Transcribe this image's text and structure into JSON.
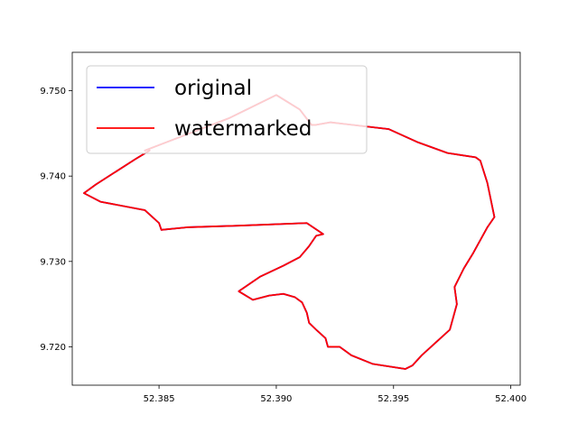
{
  "chart_data": {
    "type": "line",
    "title": "",
    "xlabel": "",
    "ylabel": "",
    "xlim": [
      52.3813,
      52.4004
    ],
    "ylim": [
      9.7155,
      9.7545
    ],
    "xticks": [
      52.385,
      52.39,
      52.395,
      52.4
    ],
    "xtick_labels": [
      "52.385",
      "52.390",
      "52.395",
      "52.400"
    ],
    "yticks": [
      9.72,
      9.73,
      9.74,
      9.75
    ],
    "ytick_labels": [
      "9.720",
      "9.730",
      "9.740",
      "9.750"
    ],
    "grid": false,
    "legend_position": "upper-left",
    "series": [
      {
        "name": "original",
        "color": "#0000ff",
        "x": [
          52.3844,
          52.388,
          52.39,
          52.391,
          52.3915,
          52.3917,
          52.3923,
          52.3948,
          52.396,
          52.3973,
          52.3985,
          52.3987,
          52.399,
          52.3993,
          52.399,
          52.3984,
          52.398,
          52.3976,
          52.3977,
          52.3974,
          52.3968,
          52.3962,
          52.3958,
          52.3955,
          52.3941,
          52.3932,
          52.3927,
          52.3922,
          52.3921,
          52.3917,
          52.3914,
          52.3913,
          52.3911,
          52.3908,
          52.3903,
          52.3897,
          52.389,
          52.3884,
          52.3893,
          52.3903,
          52.391,
          52.3914,
          52.3917,
          52.392,
          52.3913,
          52.3885,
          52.3862,
          52.3851,
          52.385,
          52.3844,
          52.3825,
          52.3818,
          52.3823,
          52.384,
          52.3846
        ],
        "y": [
          9.743,
          9.7468,
          9.7495,
          9.7478,
          9.746,
          9.746,
          9.7463,
          9.7455,
          9.744,
          9.7427,
          9.7422,
          9.7418,
          9.7392,
          9.7352,
          9.734,
          9.731,
          9.7292,
          9.727,
          9.725,
          9.722,
          9.7205,
          9.719,
          9.7178,
          9.7174,
          9.718,
          9.719,
          9.72,
          9.72,
          9.721,
          9.722,
          9.7228,
          9.724,
          9.7252,
          9.7258,
          9.7262,
          9.726,
          9.7255,
          9.7265,
          9.7282,
          9.7295,
          9.7305,
          9.7318,
          9.733,
          9.7332,
          9.7345,
          9.7342,
          9.734,
          9.7337,
          9.7345,
          9.736,
          9.737,
          9.738,
          9.739,
          9.742,
          9.743
        ]
      },
      {
        "name": "watermarked",
        "color": "#ff0000",
        "x": [
          52.3844,
          52.388,
          52.39,
          52.391,
          52.3915,
          52.3917,
          52.3923,
          52.3948,
          52.396,
          52.3973,
          52.3985,
          52.3987,
          52.399,
          52.3993,
          52.399,
          52.3984,
          52.398,
          52.3976,
          52.3977,
          52.3974,
          52.3968,
          52.3962,
          52.3958,
          52.3955,
          52.3941,
          52.3932,
          52.3927,
          52.3922,
          52.3921,
          52.3917,
          52.3914,
          52.3913,
          52.3911,
          52.3908,
          52.3903,
          52.3897,
          52.389,
          52.3884,
          52.3893,
          52.3903,
          52.391,
          52.3914,
          52.3917,
          52.392,
          52.3913,
          52.3885,
          52.3862,
          52.3851,
          52.385,
          52.3844,
          52.3825,
          52.3818,
          52.3823,
          52.384,
          52.3846
        ],
        "y": [
          9.743,
          9.7468,
          9.7495,
          9.7478,
          9.746,
          9.746,
          9.7463,
          9.7455,
          9.744,
          9.7427,
          9.7422,
          9.7418,
          9.7392,
          9.7352,
          9.734,
          9.731,
          9.7292,
          9.727,
          9.725,
          9.722,
          9.7205,
          9.719,
          9.7178,
          9.7174,
          9.718,
          9.719,
          9.72,
          9.72,
          9.721,
          9.722,
          9.7228,
          9.724,
          9.7252,
          9.7258,
          9.7262,
          9.726,
          9.7255,
          9.7265,
          9.7282,
          9.7295,
          9.7305,
          9.7318,
          9.733,
          9.7332,
          9.7345,
          9.7342,
          9.734,
          9.7337,
          9.7345,
          9.736,
          9.737,
          9.738,
          9.739,
          9.742,
          9.743
        ]
      }
    ]
  }
}
